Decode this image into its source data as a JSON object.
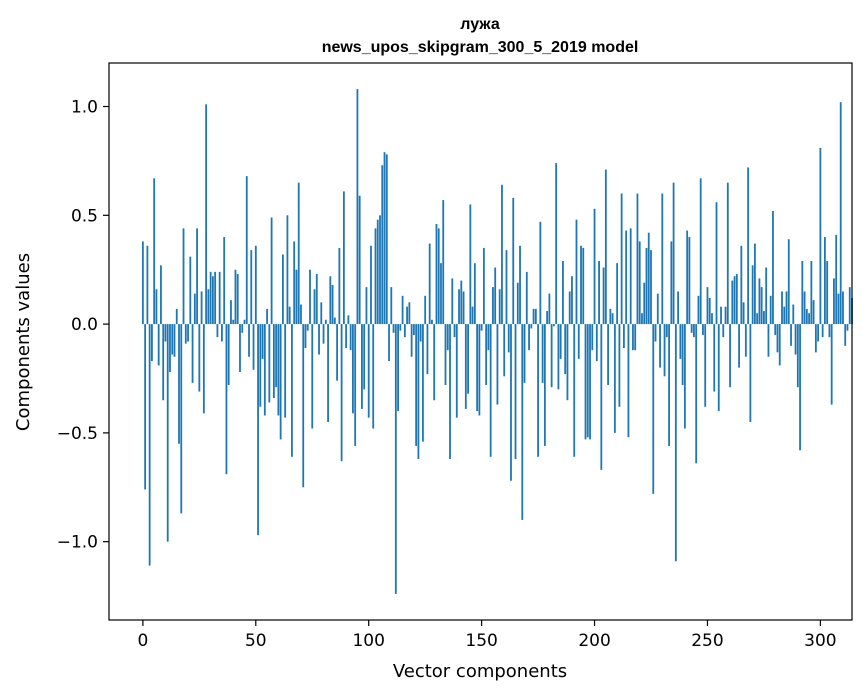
{
  "chart_data": {
    "type": "bar",
    "title": "лужа",
    "subtitle": "news_upos_skipgram_300_5_2019 model",
    "xlabel": "Vector components",
    "ylabel": "Components values",
    "xlim": [
      -15,
      314
    ],
    "ylim": [
      -1.36,
      1.2
    ],
    "xticks": [
      0,
      50,
      100,
      150,
      200,
      250,
      300
    ],
    "yticks": [
      -1.0,
      -0.5,
      0.0,
      0.5,
      1.0
    ],
    "xtick_labels": [
      "0",
      "50",
      "100",
      "150",
      "200",
      "250",
      "300"
    ],
    "ytick_labels": [
      "−1.0",
      "−0.5",
      "0.0",
      "0.5",
      "1.0"
    ],
    "grid": false,
    "bar_color": "#1f77b4",
    "values": [
      0.38,
      -0.76,
      0.36,
      -1.11,
      -0.17,
      0.67,
      0.16,
      -0.19,
      0.27,
      -0.35,
      -0.08,
      -1.0,
      -0.22,
      -0.14,
      -0.15,
      0.07,
      -0.55,
      -0.87,
      0.44,
      -0.09,
      -0.08,
      0.31,
      -0.27,
      0.14,
      0.44,
      -0.31,
      0.15,
      -0.41,
      1.01,
      0.16,
      0.24,
      0.22,
      0.24,
      -0.06,
      0.24,
      -0.08,
      0.4,
      -0.69,
      -0.28,
      0.11,
      0.02,
      0.25,
      0.23,
      -0.22,
      -0.04,
      0.02,
      0.68,
      -0.15,
      0.34,
      -0.21,
      0.36,
      -0.97,
      -0.38,
      -0.16,
      -0.42,
      0.07,
      -0.36,
      0.49,
      -0.34,
      -0.29,
      -0.42,
      -0.53,
      0.32,
      -0.43,
      0.5,
      0.08,
      -0.61,
      0.38,
      0.25,
      0.65,
      0.09,
      -0.75,
      -0.11,
      -0.03,
      0.25,
      -0.48,
      0.16,
      0.23,
      -0.14,
      0.1,
      -0.09,
      0.02,
      -0.45,
      0.22,
      0.18,
      0.03,
      -0.26,
      0.35,
      -0.63,
      0.61,
      -0.11,
      0.04,
      -0.12,
      -0.41,
      -0.56,
      1.08,
      0.59,
      -0.39,
      -0.3,
      0.17,
      -0.43,
      0.36,
      -0.48,
      0.44,
      0.48,
      0.5,
      0.73,
      0.79,
      0.78,
      -0.17,
      0.17,
      -0.04,
      -1.24,
      -0.4,
      -0.03,
      0.13,
      -0.06,
      0.08,
      0.1,
      -0.15,
      -0.05,
      -0.56,
      -0.62,
      -0.08,
      -0.54,
      0.13,
      -0.23,
      0.37,
      0.02,
      -0.35,
      0.46,
      0.44,
      0.28,
      0.57,
      -0.28,
      -0.12,
      -0.62,
      0.21,
      -0.06,
      -0.43,
      0.16,
      0.2,
      0.15,
      -0.39,
      -0.32,
      0.55,
      0.08,
      0.28,
      -0.4,
      -0.42,
      -0.03,
      0.35,
      -0.28,
      -0.12,
      -0.61,
      0.17,
      0.26,
      -0.37,
      0.16,
      0.64,
      -0.24,
      0.34,
      -0.13,
      -0.72,
      0.58,
      -0.62,
      0.19,
      0.36,
      -0.9,
      -0.27,
      0.24,
      -0.12,
      -0.02,
      0.07,
      0.07,
      -0.61,
      0.47,
      -0.27,
      -0.56,
      0.06,
      0.14,
      -0.29,
      -0.01,
      0.74,
      -0.3,
      -0.16,
      0.29,
      -0.23,
      -0.35,
      0.15,
      0.22,
      -0.61,
      0.48,
      -0.16,
      0.36,
      0.35,
      -0.53,
      -0.52,
      -0.53,
      -0.12,
      0.53,
      -0.17,
      0.29,
      -0.67,
      0.26,
      0.71,
      -0.28,
      0.07,
      0.05,
      -0.5,
      0.28,
      -0.38,
      0.6,
      -0.11,
      0.43,
      -0.52,
      0.44,
      -0.12,
      -0.12,
      0.6,
      0.38,
      0.05,
      0.19,
      0.35,
      0.42,
      0.34,
      -0.78,
      -0.08,
      0.14,
      -0.2,
      0.6,
      -0.24,
      -0.06,
      -0.56,
      0.38,
      0.65,
      -1.09,
      0.15,
      -0.16,
      -0.28,
      -0.48,
      0.43,
      0.4,
      -0.04,
      -0.06,
      -0.64,
      0.13,
      0.67,
      -0.05,
      -0.38,
      0.17,
      0.12,
      0.05,
      -0.31,
      0.56,
      -0.4,
      0.08,
      -0.06,
      0.08,
      0.65,
      -0.29,
      0.2,
      0.22,
      0.23,
      -0.2,
      0.36,
      0.1,
      -0.15,
      0.72,
      -0.45,
      0.27,
      0.37,
      0.05,
      0.21,
      0.17,
      0.06,
      0.26,
      -0.15,
      0.13,
      0.52,
      -0.05,
      -0.13,
      -0.19,
      0.15,
      0.08,
      0.15,
      0.39,
      -0.1,
      0.09,
      -0.14,
      -0.29,
      -0.58,
      0.29,
      0.15,
      0.07,
      0.05,
      0.29,
      0.11,
      -0.13,
      -0.08,
      0.81,
      -0.06,
      0.4,
      0.29,
      -0.06,
      -0.37,
      0.21,
      0.41,
      0.14,
      1.02,
      0.15,
      -0.1,
      -0.03,
      0.17,
      0.12
    ]
  }
}
